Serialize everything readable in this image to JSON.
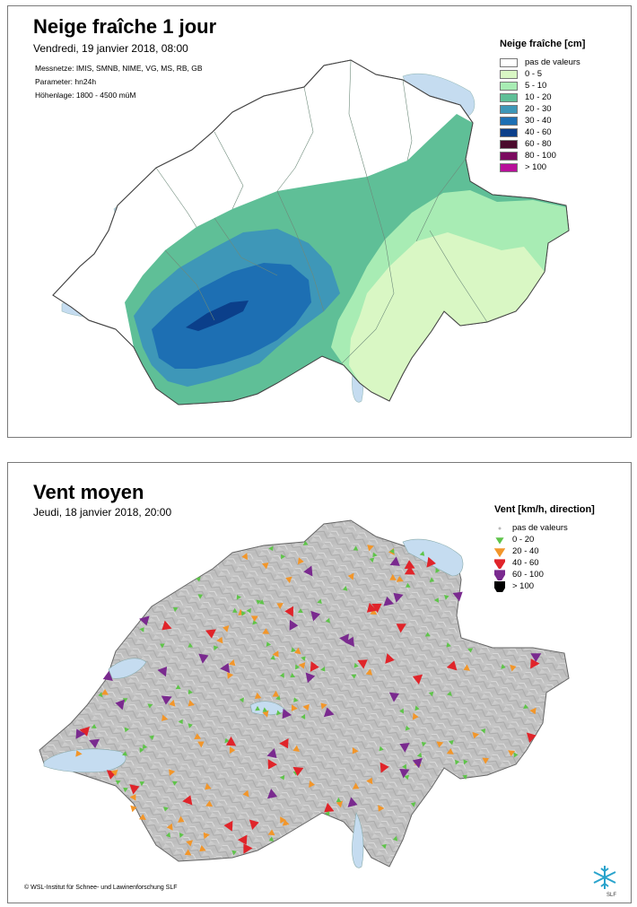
{
  "panel1": {
    "title": "Neige fraîche 1 jour",
    "subtitle": "Vendredi, 19 janvier 2018, 08:00",
    "meta": [
      "Messnetze: IMIS, SMNB, NIME, VG, MS, RB, GB",
      "Parameter: hn24h",
      "Höhenlage: 1800 - 4500 müM"
    ],
    "legend": {
      "title": "Neige fraîche [cm]",
      "items": [
        {
          "label": "pas de valeurs",
          "color": "#ffffff"
        },
        {
          "label": "0 - 5",
          "color": "#d9f7c4"
        },
        {
          "label": "5 - 10",
          "color": "#a8ecb4"
        },
        {
          "label": "10 - 20",
          "color": "#5fbf97"
        },
        {
          "label": "20 - 30",
          "color": "#3e97b8"
        },
        {
          "label": "30 - 40",
          "color": "#1d6fb3"
        },
        {
          "label": "40 - 60",
          "color": "#0b3f8a"
        },
        {
          "label": "60 - 80",
          "color": "#4a0a2c"
        },
        {
          "label": "80 - 100",
          "color": "#7a0a5e"
        },
        {
          "label": "> 100",
          "color": "#b8109a"
        }
      ]
    }
  },
  "panel2": {
    "title": "Vent moyen",
    "subtitle": "Jeudi, 18 janvier 2018, 20:00",
    "legend": {
      "title": "Vent [km/h, direction]",
      "items": [
        {
          "label": "pas de valeurs",
          "color": "#b9b9b9"
        },
        {
          "label": "0 - 20",
          "color": "#5fc44a"
        },
        {
          "label": "20 - 40",
          "color": "#f2962a"
        },
        {
          "label": "40 - 60",
          "color": "#e0242a"
        },
        {
          "label": "60 - 100",
          "color": "#7a2a8f"
        },
        {
          "label": "> 100",
          "color": "#000000"
        }
      ]
    },
    "copyright": "© WSL-Institut für Schnee- und Lawinenforschung SLF",
    "logo_text": "SLF"
  }
}
